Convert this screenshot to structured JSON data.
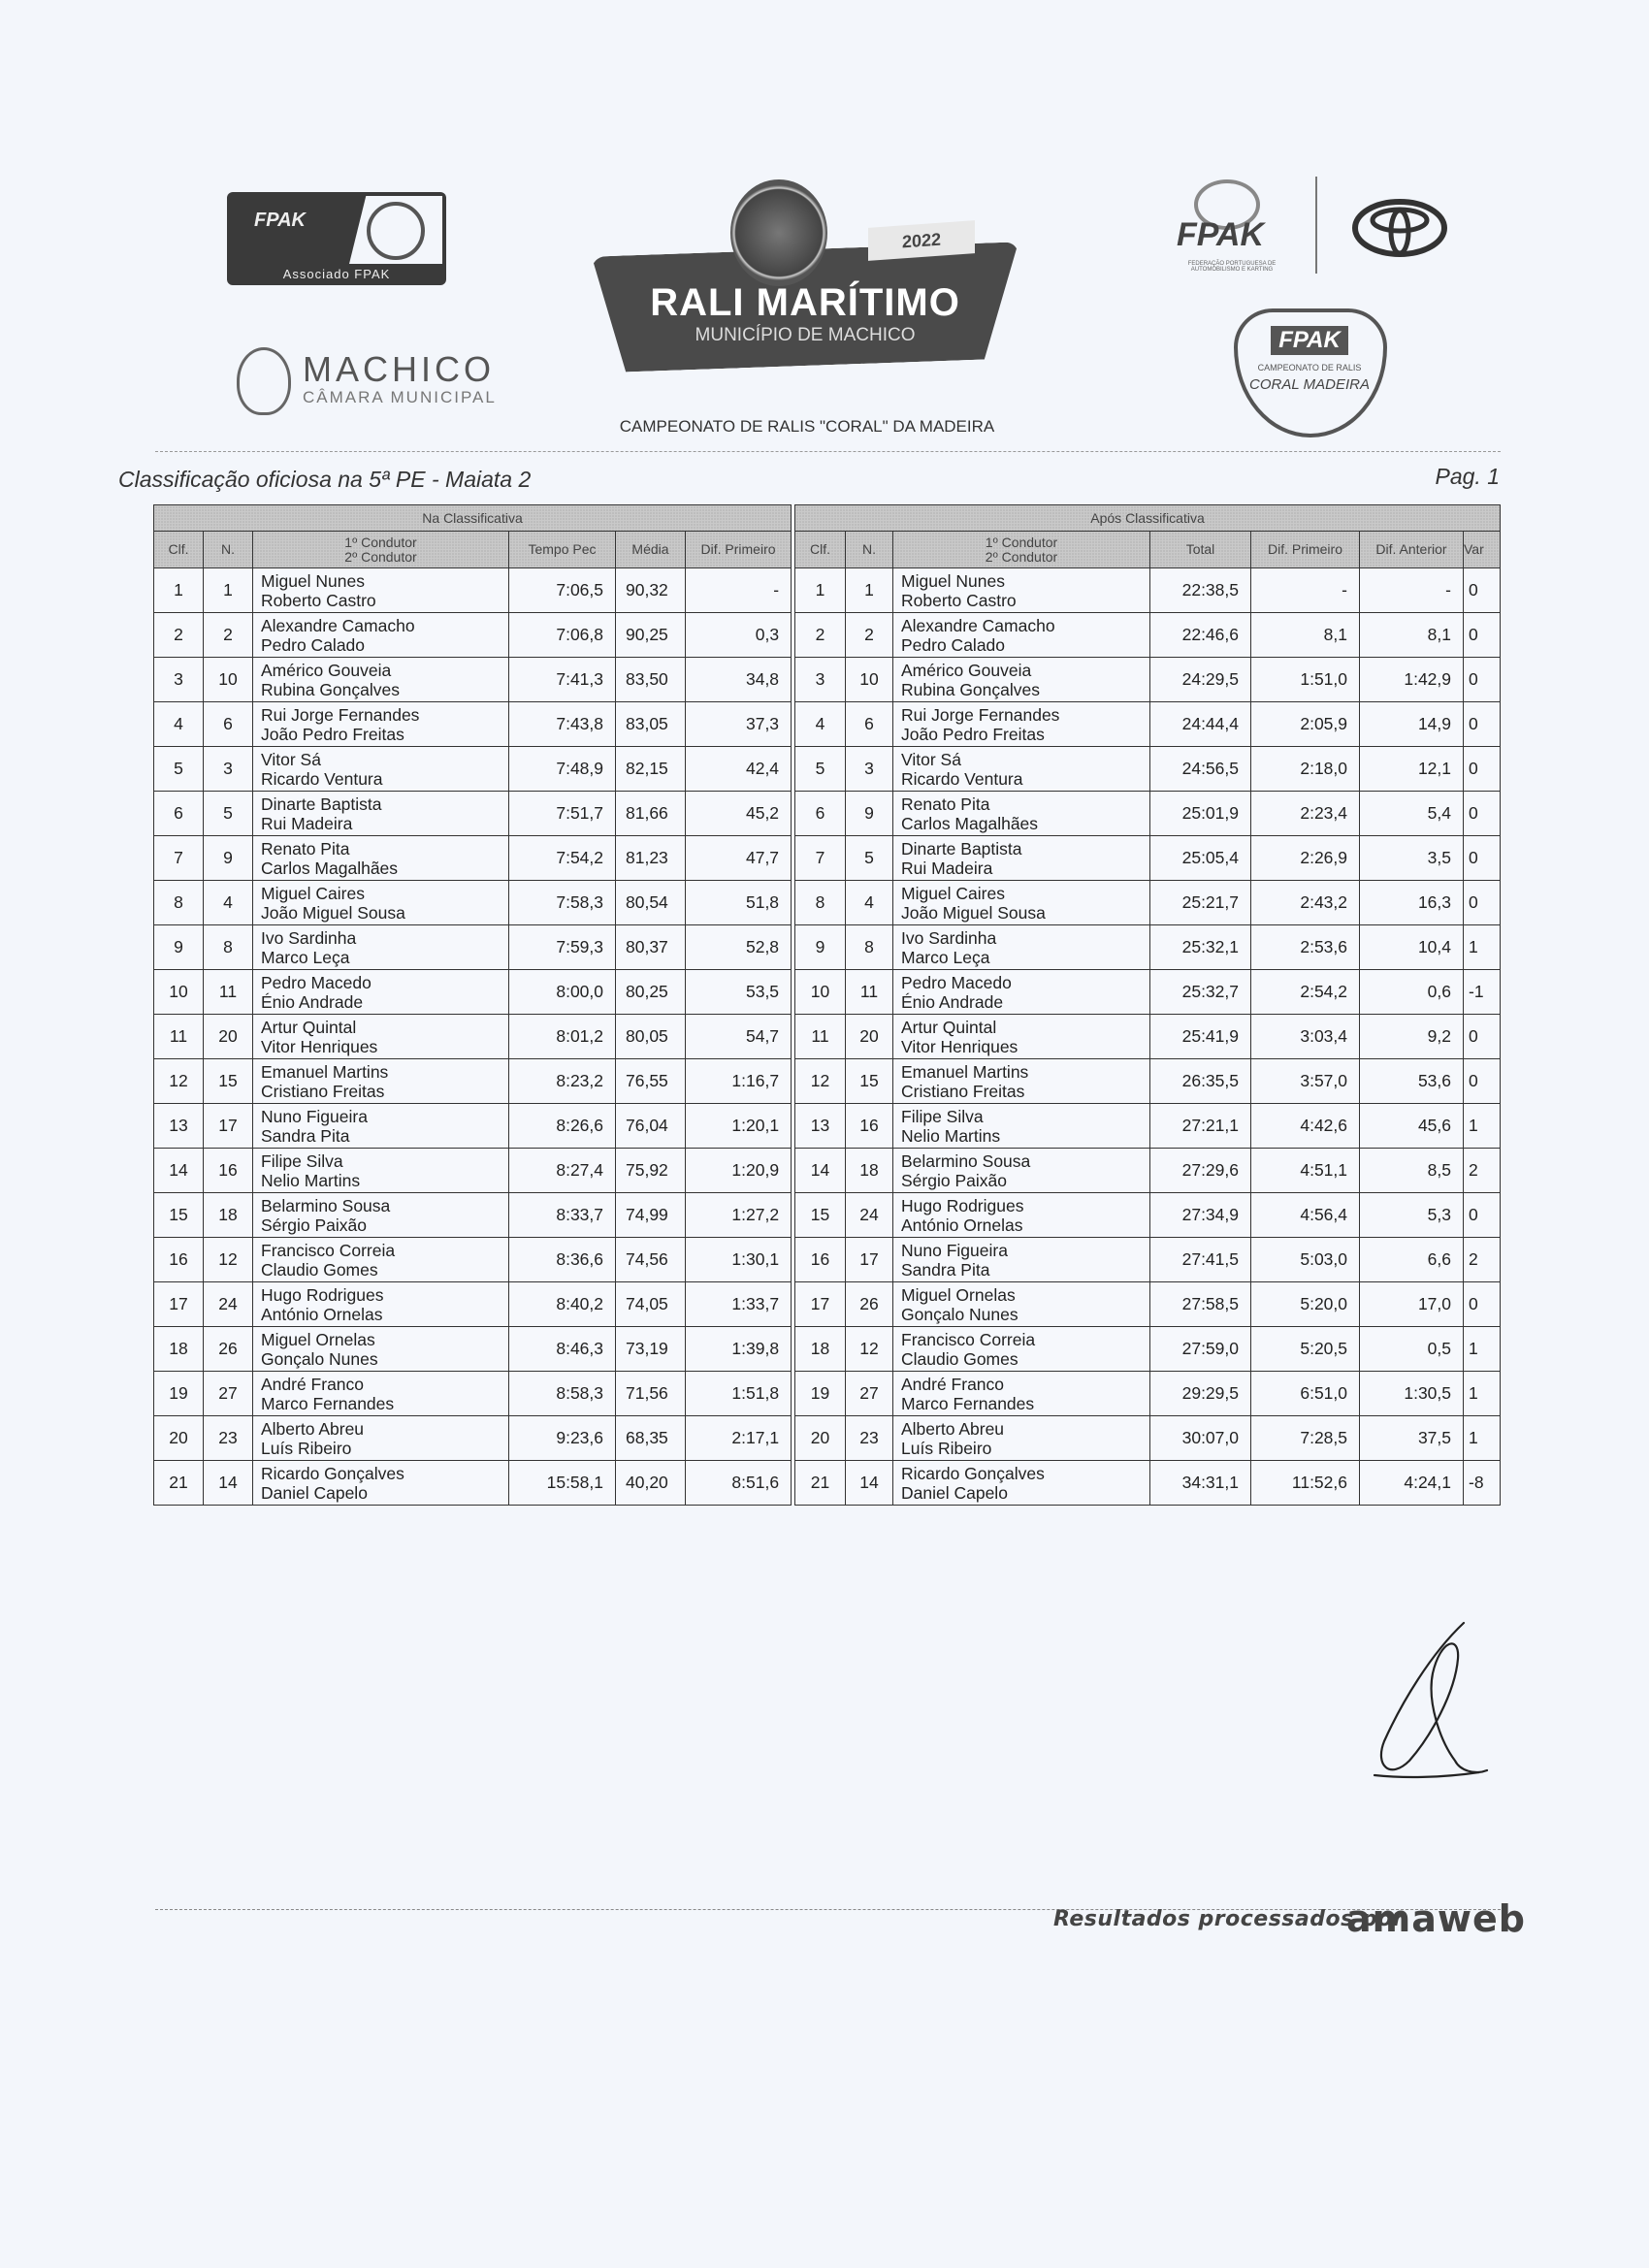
{
  "header": {
    "assoc_logo_text": "Associado FPAK",
    "assoc_logo_brand": "FPAK",
    "machico_name": "MACHICO",
    "machico_sub": "CÂMARA MUNICIPAL",
    "event_year": "2022",
    "event_title": "RALI MARÍTIMO",
    "event_subtitle": "MUNICÍPIO DE MACHICO",
    "fpak_brand": "FPAK",
    "fpak_small": "FEDERAÇÃO PORTUGUESA DE AUTOMOBILISMO E KARTING",
    "shield_brand": "FPAK",
    "shield_line1": "CAMPEONATO DE RALIS",
    "shield_line2": "CORAL MADEIRA",
    "championship": "CAMPEONATO DE RALIS \"CORAL\" DA MADEIRA"
  },
  "document": {
    "title": "Classificação oficiosa na 5ª PE - Maiata 2",
    "page": "Pag. 1"
  },
  "left_table": {
    "group_label": "Na Classificativa",
    "columns": [
      "Clf.",
      "N.",
      "1º Condutor\n2º Condutor",
      "Tempo Pec",
      "Média",
      "Dif. Primeiro"
    ],
    "rows": [
      [
        "1",
        "1",
        "Miguel Nunes",
        "Roberto Castro",
        "7:06,5",
        "90,32",
        "-"
      ],
      [
        "2",
        "2",
        "Alexandre Camacho",
        "Pedro Calado",
        "7:06,8",
        "90,25",
        "0,3"
      ],
      [
        "3",
        "10",
        "Américo Gouveia",
        "Rubina Gonçalves",
        "7:41,3",
        "83,50",
        "34,8"
      ],
      [
        "4",
        "6",
        "Rui Jorge Fernandes",
        "João Pedro Freitas",
        "7:43,8",
        "83,05",
        "37,3"
      ],
      [
        "5",
        "3",
        "Vitor Sá",
        "Ricardo Ventura",
        "7:48,9",
        "82,15",
        "42,4"
      ],
      [
        "6",
        "5",
        "Dinarte Baptista",
        "Rui Madeira",
        "7:51,7",
        "81,66",
        "45,2"
      ],
      [
        "7",
        "9",
        "Renato Pita",
        "Carlos Magalhães",
        "7:54,2",
        "81,23",
        "47,7"
      ],
      [
        "8",
        "4",
        "Miguel Caires",
        "João Miguel Sousa",
        "7:58,3",
        "80,54",
        "51,8"
      ],
      [
        "9",
        "8",
        "Ivo Sardinha",
        "Marco Leça",
        "7:59,3",
        "80,37",
        "52,8"
      ],
      [
        "10",
        "11",
        "Pedro Macedo",
        "Énio Andrade",
        "8:00,0",
        "80,25",
        "53,5"
      ],
      [
        "11",
        "20",
        "Artur Quintal",
        "Vitor Henriques",
        "8:01,2",
        "80,05",
        "54,7"
      ],
      [
        "12",
        "15",
        "Emanuel Martins",
        "Cristiano Freitas",
        "8:23,2",
        "76,55",
        "1:16,7"
      ],
      [
        "13",
        "17",
        "Nuno Figueira",
        "Sandra Pita",
        "8:26,6",
        "76,04",
        "1:20,1"
      ],
      [
        "14",
        "16",
        "Filipe Silva",
        "Nelio Martins",
        "8:27,4",
        "75,92",
        "1:20,9"
      ],
      [
        "15",
        "18",
        "Belarmino Sousa",
        "Sérgio Paixão",
        "8:33,7",
        "74,99",
        "1:27,2"
      ],
      [
        "16",
        "12",
        "Francisco Correia",
        "Claudio Gomes",
        "8:36,6",
        "74,56",
        "1:30,1"
      ],
      [
        "17",
        "24",
        "Hugo Rodrigues",
        "António Ornelas",
        "8:40,2",
        "74,05",
        "1:33,7"
      ],
      [
        "18",
        "26",
        "Miguel Ornelas",
        "Gonçalo Nunes",
        "8:46,3",
        "73,19",
        "1:39,8"
      ],
      [
        "19",
        "27",
        "André Franco",
        "Marco Fernandes",
        "8:58,3",
        "71,56",
        "1:51,8"
      ],
      [
        "20",
        "23",
        "Alberto Abreu",
        "Luís Ribeiro",
        "9:23,6",
        "68,35",
        "2:17,1"
      ],
      [
        "21",
        "14",
        "Ricardo Gonçalves",
        "Daniel Capelo",
        "15:58,1",
        "40,20",
        "8:51,6"
      ]
    ]
  },
  "right_table": {
    "group_label": "Após Classificativa",
    "columns": [
      "Clf.",
      "N.",
      "1º Condutor\n2º Condutor",
      "Total",
      "Dif. Primeiro",
      "Dif. Anterior",
      "Var"
    ],
    "rows": [
      [
        "1",
        "1",
        "Miguel Nunes",
        "Roberto Castro",
        "22:38,5",
        "-",
        "-",
        "0"
      ],
      [
        "2",
        "2",
        "Alexandre Camacho",
        "Pedro Calado",
        "22:46,6",
        "8,1",
        "8,1",
        "0"
      ],
      [
        "3",
        "10",
        "Américo Gouveia",
        "Rubina Gonçalves",
        "24:29,5",
        "1:51,0",
        "1:42,9",
        "0"
      ],
      [
        "4",
        "6",
        "Rui Jorge Fernandes",
        "João Pedro Freitas",
        "24:44,4",
        "2:05,9",
        "14,9",
        "0"
      ],
      [
        "5",
        "3",
        "Vitor Sá",
        "Ricardo Ventura",
        "24:56,5",
        "2:18,0",
        "12,1",
        "0"
      ],
      [
        "6",
        "9",
        "Renato Pita",
        "Carlos Magalhães",
        "25:01,9",
        "2:23,4",
        "5,4",
        "0"
      ],
      [
        "7",
        "5",
        "Dinarte Baptista",
        "Rui Madeira",
        "25:05,4",
        "2:26,9",
        "3,5",
        "0"
      ],
      [
        "8",
        "4",
        "Miguel Caires",
        "João Miguel Sousa",
        "25:21,7",
        "2:43,2",
        "16,3",
        "0"
      ],
      [
        "9",
        "8",
        "Ivo Sardinha",
        "Marco Leça",
        "25:32,1",
        "2:53,6",
        "10,4",
        "1"
      ],
      [
        "10",
        "11",
        "Pedro Macedo",
        "Énio Andrade",
        "25:32,7",
        "2:54,2",
        "0,6",
        "-1"
      ],
      [
        "11",
        "20",
        "Artur Quintal",
        "Vitor Henriques",
        "25:41,9",
        "3:03,4",
        "9,2",
        "0"
      ],
      [
        "12",
        "15",
        "Emanuel Martins",
        "Cristiano Freitas",
        "26:35,5",
        "3:57,0",
        "53,6",
        "0"
      ],
      [
        "13",
        "16",
        "Filipe Silva",
        "Nelio Martins",
        "27:21,1",
        "4:42,6",
        "45,6",
        "1"
      ],
      [
        "14",
        "18",
        "Belarmino Sousa",
        "Sérgio Paixão",
        "27:29,6",
        "4:51,1",
        "8,5",
        "2"
      ],
      [
        "15",
        "24",
        "Hugo Rodrigues",
        "António Ornelas",
        "27:34,9",
        "4:56,4",
        "5,3",
        "0"
      ],
      [
        "16",
        "17",
        "Nuno Figueira",
        "Sandra Pita",
        "27:41,5",
        "5:03,0",
        "6,6",
        "2"
      ],
      [
        "17",
        "26",
        "Miguel Ornelas",
        "Gonçalo Nunes",
        "27:58,5",
        "5:20,0",
        "17,0",
        "0"
      ],
      [
        "18",
        "12",
        "Francisco Correia",
        "Claudio Gomes",
        "27:59,0",
        "5:20,5",
        "0,5",
        "1"
      ],
      [
        "19",
        "27",
        "André Franco",
        "Marco Fernandes",
        "29:29,5",
        "6:51,0",
        "1:30,5",
        "1"
      ],
      [
        "20",
        "23",
        "Alberto Abreu",
        "Luís Ribeiro",
        "30:07,0",
        "7:28,5",
        "37,5",
        "1"
      ],
      [
        "21",
        "14",
        "Ricardo Gonçalves",
        "Daniel Capelo",
        "34:31,1",
        "11:52,6",
        "4:24,1",
        "-8"
      ]
    ]
  },
  "footer": {
    "processed_by": "Resultados processados por",
    "provider_logo": "amaweb"
  },
  "colors": {
    "paper": "#f3f6fb",
    "header_fill": "#c9c9c9",
    "border": "#333333"
  }
}
